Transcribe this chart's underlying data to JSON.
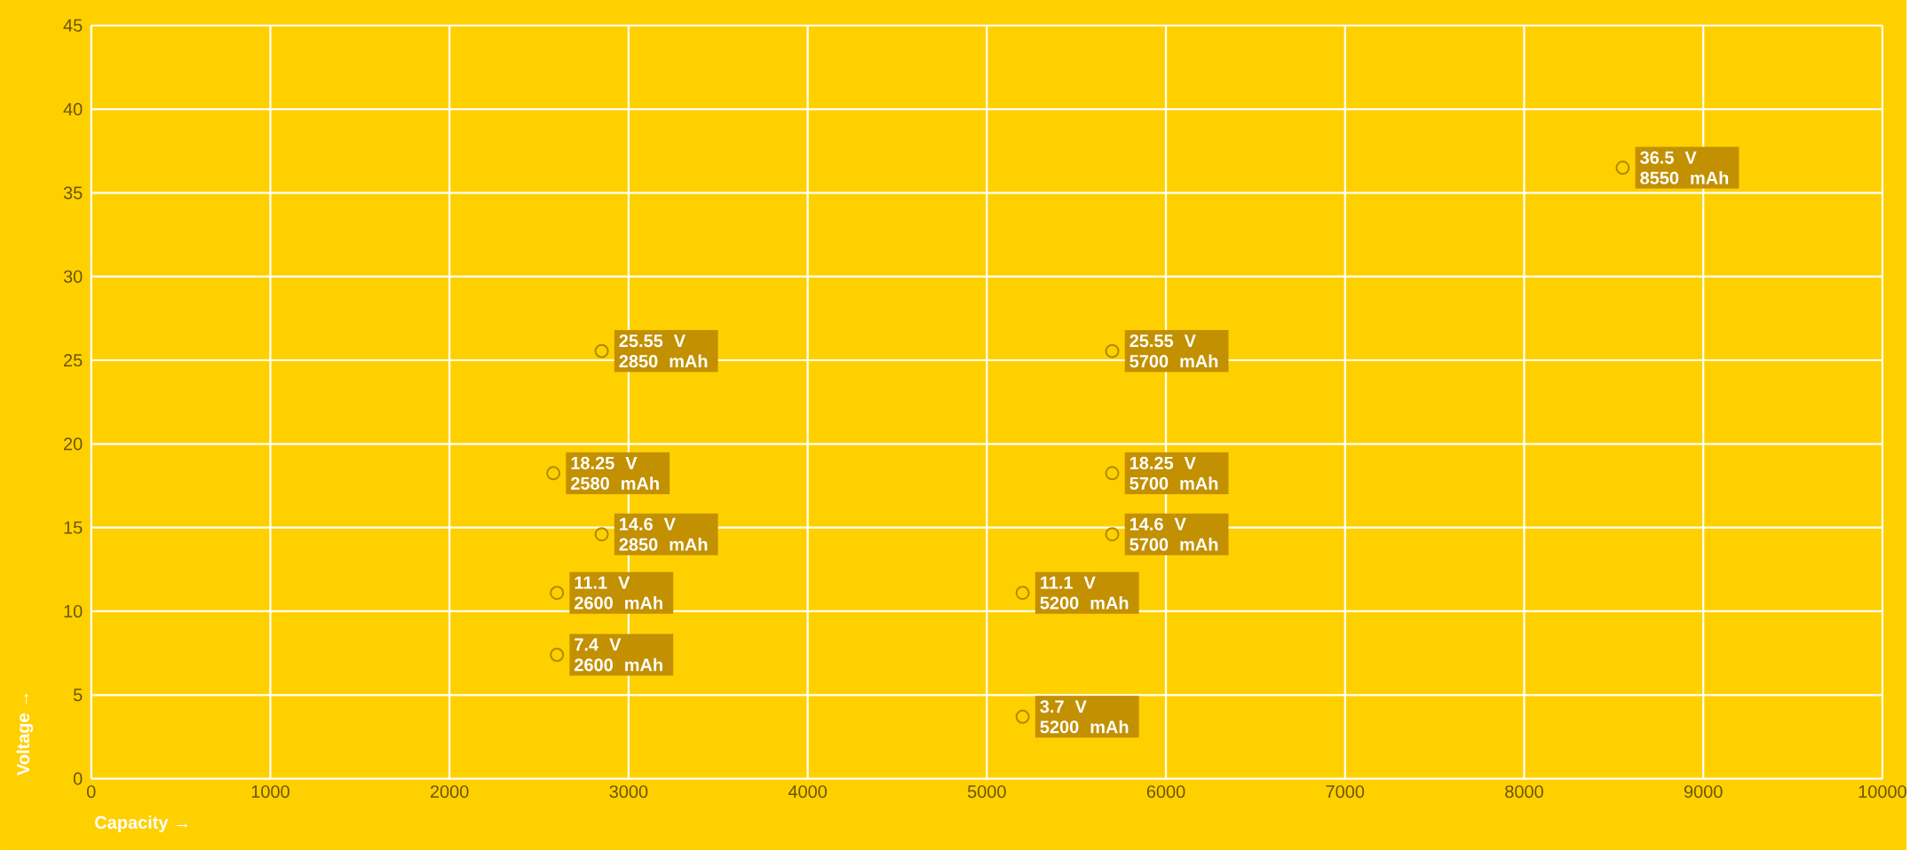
{
  "chart_data": {
    "type": "scatter",
    "xlabel": "Capacity →",
    "ylabel": "Voltage →",
    "x": [
      8550,
      2850,
      2580,
      2850,
      2600,
      2600,
      5700,
      5700,
      5700,
      5200,
      5200
    ],
    "values": [
      36.5,
      25.55,
      18.25,
      14.6,
      11.1,
      7.4,
      25.55,
      18.25,
      14.6,
      11.1,
      3.7
    ],
    "value_labels": [
      "36.5 V 8550 mAh",
      "25.55 V 2850 mAh",
      "18.25 V 2580 mAh",
      "14.6 V 2850 mAh",
      "11.1 V 2600 mAh",
      "7.4 V 2600 mAh",
      "25.55 V 5700 mAh",
      "18.25 V 5700 mAh",
      "14.6 V 5700 mAh",
      "11.1 V 5200 mAh",
      "3.7 V 5200 mAh"
    ],
    "color": "#b08a00",
    "grid": true,
    "xlim": [
      0,
      10000
    ],
    "ylim": [
      0,
      45
    ],
    "xticks": [
      0,
      1000,
      2000,
      3000,
      4000,
      5000,
      6000,
      7000,
      8000,
      9000,
      10000
    ],
    "yticks": [
      0,
      5,
      10,
      15,
      20,
      25,
      30,
      35,
      40,
      45
    ]
  }
}
